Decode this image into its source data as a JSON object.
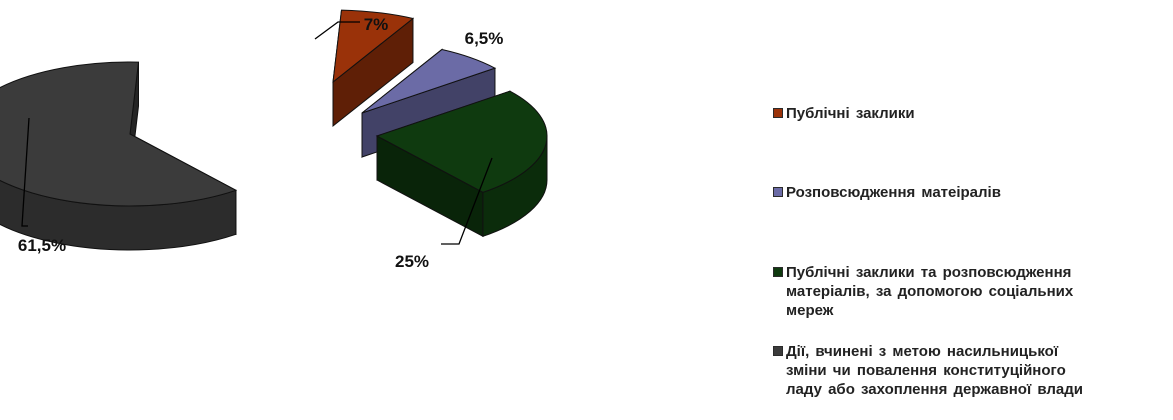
{
  "chart_data": {
    "type": "pie",
    "style": "3d-exploded",
    "slices": [
      {
        "label": "Публічні заклики",
        "value": 7,
        "value_label": "7%",
        "color": "#9a3209"
      },
      {
        "label": "Розповсюдження  матеіралів",
        "value": 6.5,
        "value_label": "6,5%",
        "color": "#6b6ba6"
      },
      {
        "label": "Публічні  заклики та розповсюдження\nматеріалів,  за допомогою  соціальних\nмереж",
        "value": 25,
        "value_label": "25%",
        "color": "#0f3a0f"
      },
      {
        "label": "Дії, вчинені з метою насильницької\nзміни чи повалення конституційного\nладу або захоплення державної влади",
        "value": 61.5,
        "value_label": "61,5%",
        "color": "#3b3b3b"
      }
    ],
    "legend_position": "right"
  }
}
